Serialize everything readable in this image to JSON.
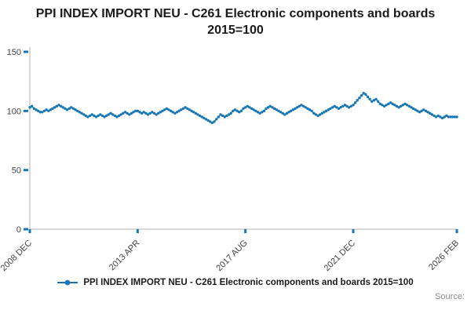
{
  "header": {
    "title": "PPI INDEX IMPORT NEU - C261 Electronic components and boards 2015=100"
  },
  "source": {
    "label": "Source:"
  },
  "chart_data": {
    "type": "line",
    "title": "PPI INDEX IMPORT NEU - C261 Electronic components and boards 2015=100",
    "legend": "PPI INDEX IMPORT NEU - C261 Electronic components and boards 2015=100",
    "legend_position": "bottom",
    "grid": false,
    "x_unit": "month",
    "x_start": "2008 DEC",
    "x_end": "2026 FEB",
    "ylim": [
      0,
      150
    ],
    "yticks": [
      0,
      50,
      100,
      150
    ],
    "xticks": [
      {
        "label": "2008 DEC",
        "index": 0
      },
      {
        "label": "2013 APR",
        "index": 52
      },
      {
        "label": "2017 AUG",
        "index": 104
      },
      {
        "label": "2021 DEC",
        "index": 156
      },
      {
        "label": "2026 FEB",
        "index": 206
      }
    ],
    "line_color": "#1777b5",
    "axis_color": "#b3b3b3",
    "values": [
      103,
      104,
      102,
      101,
      100,
      99,
      99,
      100,
      101,
      100,
      101,
      102,
      103,
      104,
      105,
      104,
      103,
      102,
      101,
      102,
      103,
      102,
      101,
      100,
      99,
      98,
      97,
      96,
      95,
      96,
      97,
      96,
      95,
      96,
      97,
      96,
      95,
      96,
      97,
      98,
      97,
      96,
      95,
      96,
      97,
      98,
      99,
      98,
      97,
      98,
      99,
      100,
      100,
      99,
      98,
      99,
      98,
      97,
      98,
      99,
      98,
      97,
      98,
      99,
      100,
      101,
      102,
      101,
      100,
      99,
      98,
      99,
      100,
      101,
      102,
      103,
      102,
      101,
      100,
      99,
      98,
      97,
      96,
      95,
      94,
      93,
      92,
      91,
      90,
      91,
      93,
      95,
      97,
      96,
      95,
      96,
      97,
      98,
      100,
      101,
      100,
      99,
      100,
      102,
      103,
      104,
      103,
      102,
      101,
      100,
      99,
      98,
      99,
      100,
      102,
      103,
      104,
      103,
      102,
      101,
      100,
      99,
      98,
      97,
      98,
      99,
      100,
      101,
      102,
      103,
      104,
      105,
      104,
      103,
      102,
      101,
      100,
      98,
      97,
      96,
      97,
      98,
      99,
      100,
      101,
      102,
      103,
      104,
      103,
      102,
      103,
      104,
      105,
      104,
      103,
      104,
      105,
      107,
      109,
      111,
      113,
      115,
      114,
      112,
      110,
      108,
      109,
      110,
      108,
      106,
      105,
      104,
      105,
      106,
      107,
      106,
      105,
      104,
      103,
      104,
      105,
      106,
      105,
      104,
      103,
      102,
      101,
      100,
      99,
      100,
      101,
      100,
      99,
      98,
      97,
      96,
      95,
      96,
      95,
      94,
      95,
      96,
      95,
      95,
      95,
      95,
      95
    ]
  }
}
